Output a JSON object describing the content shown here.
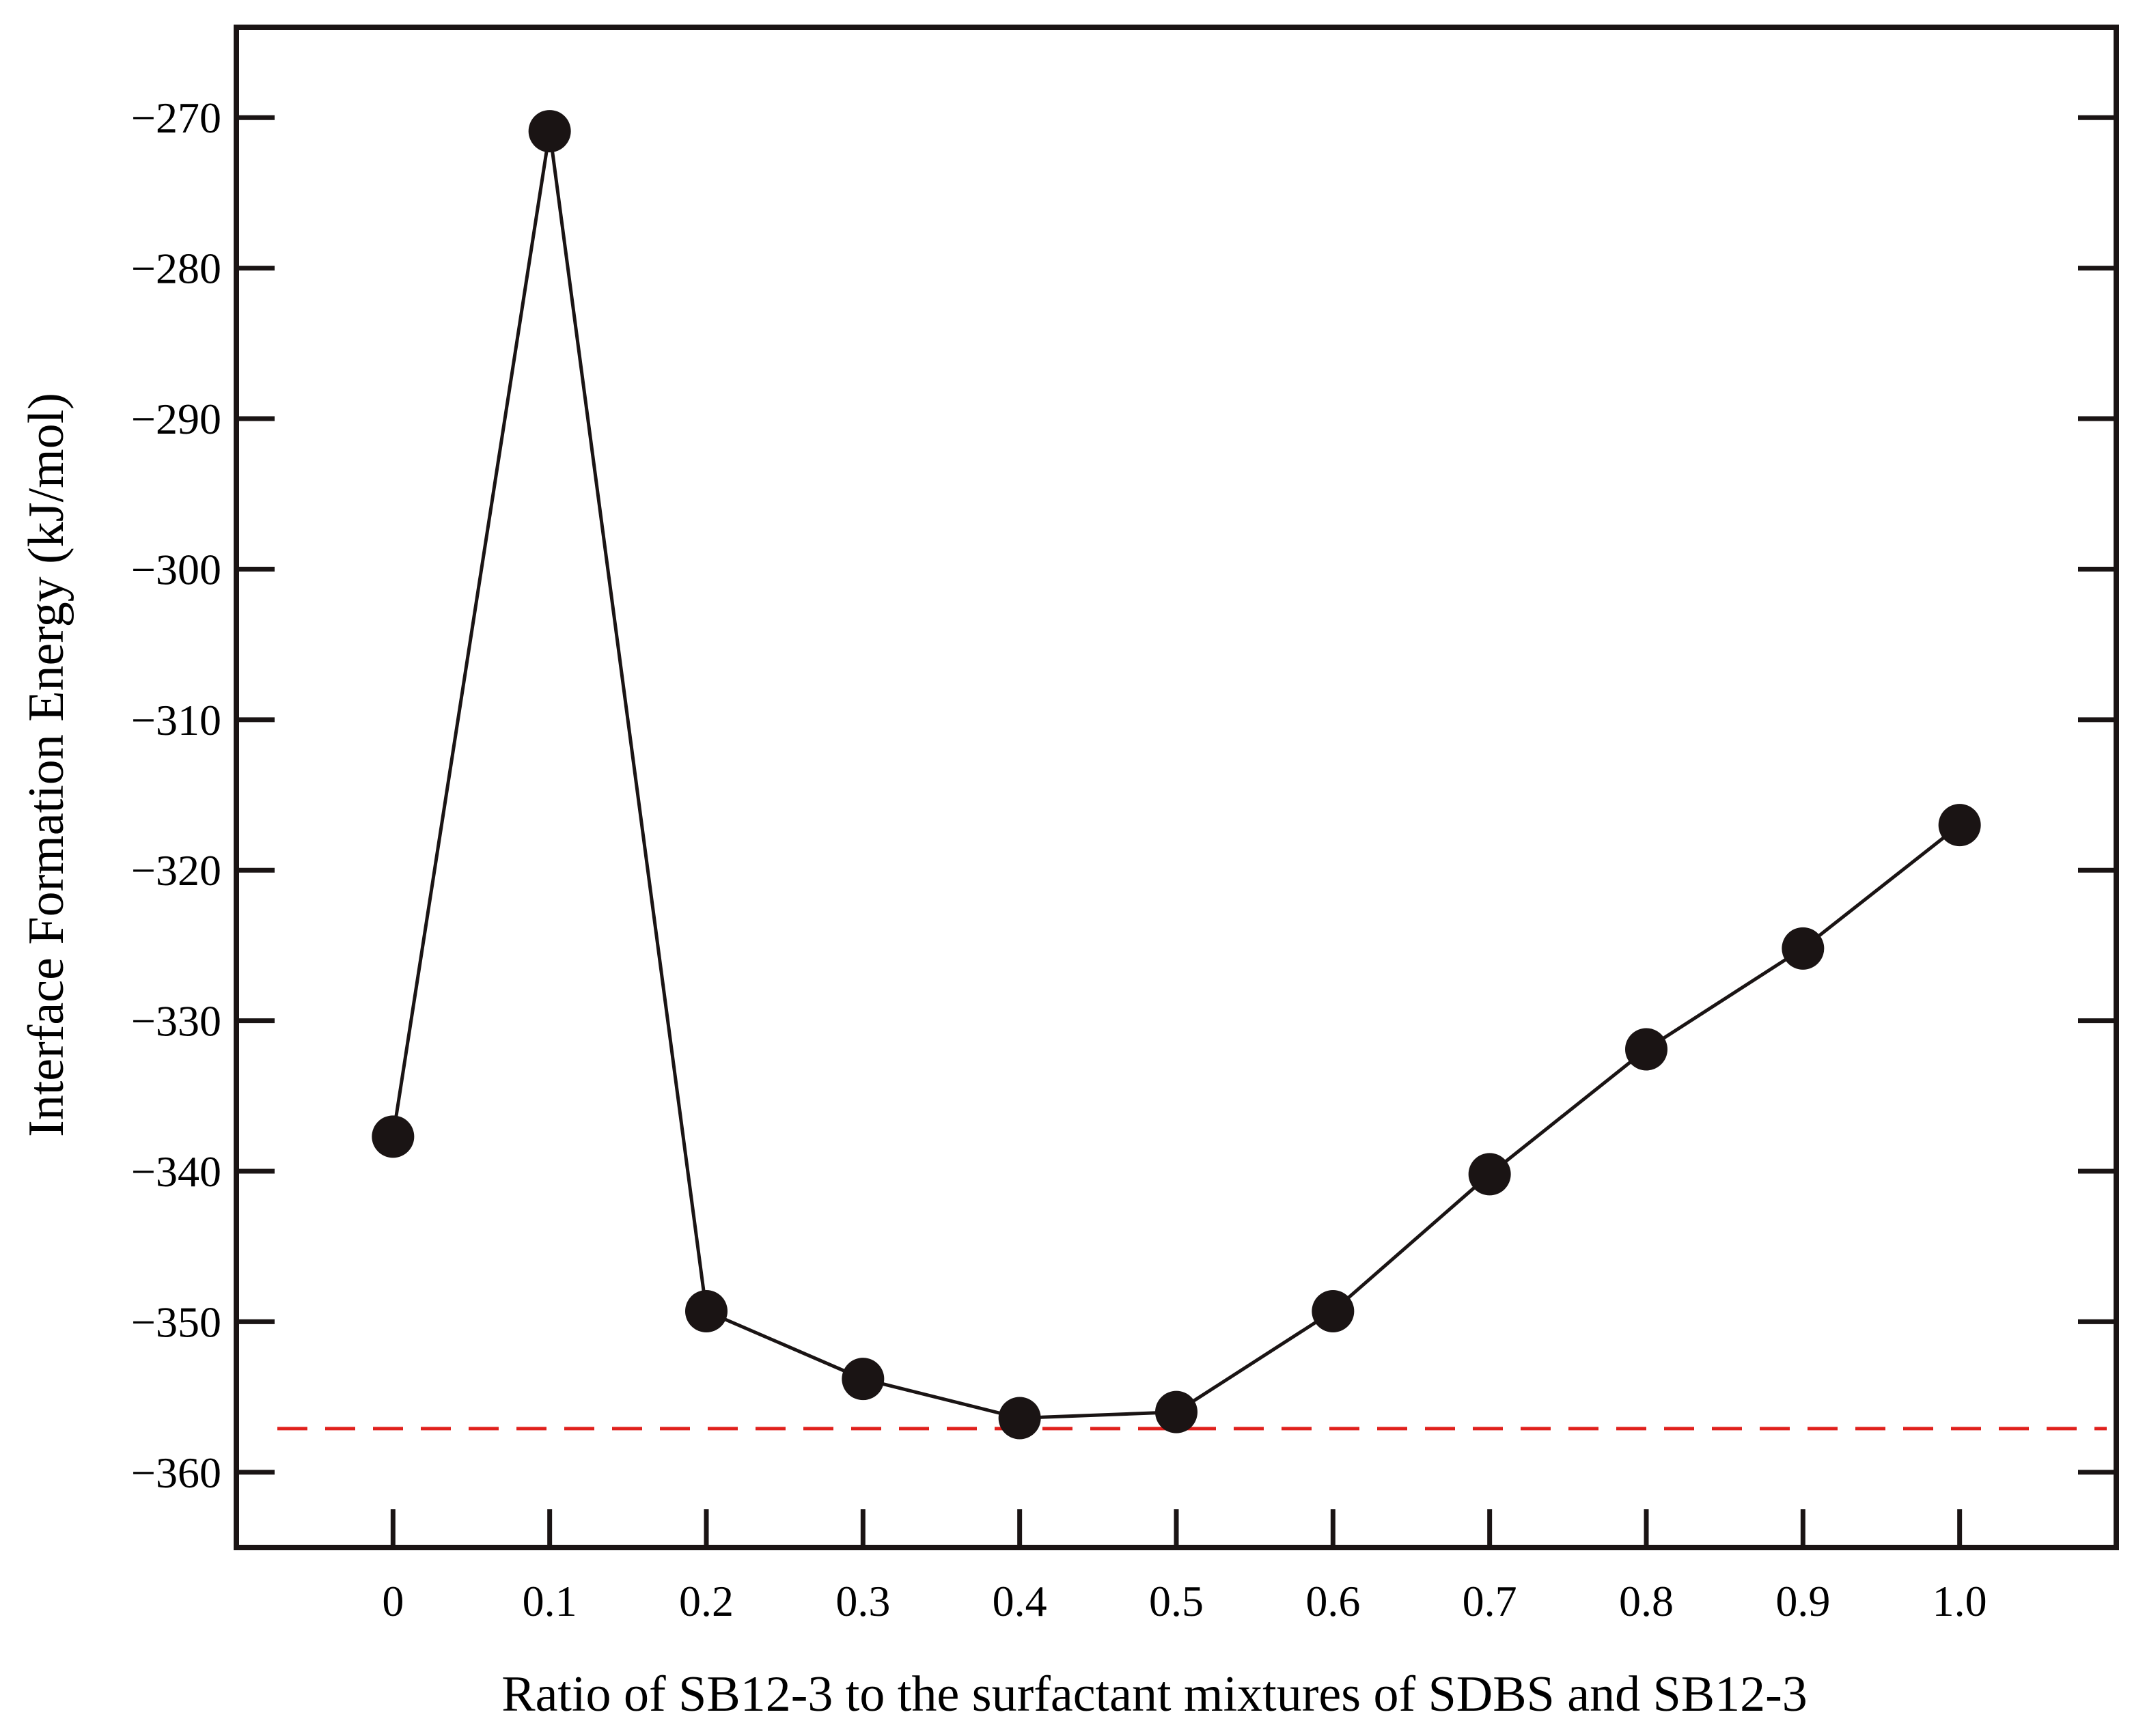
{
  "chart_data": {
    "type": "line",
    "title": "",
    "xlabel": "Ratio of SB12-3 to the surfactant mixtures of SDBS and SB12-3",
    "ylabel": "Interface Formation Energy (kJ/mol)",
    "xlim": [
      -0.1,
      1.1
    ],
    "ylim": [
      -365,
      -264
    ],
    "x_ticks": [
      0,
      0.1,
      0.2,
      0.3,
      0.4,
      0.5,
      0.6,
      0.7,
      0.8,
      0.9,
      1.0
    ],
    "x_tick_labels": [
      "0",
      "0.1",
      "0.2",
      "0.3",
      "0.4",
      "0.5",
      "0.6",
      "0.7",
      "0.8",
      "0.9",
      "1.0"
    ],
    "y_ticks": [
      -270,
      -280,
      -290,
      -300,
      -310,
      -320,
      -330,
      -340,
      -350,
      -360
    ],
    "y_tick_labels": [
      "−270",
      "−280",
      "−290",
      "−300",
      "−310",
      "−320",
      "−330",
      "−340",
      "−350",
      "−360"
    ],
    "grid": false,
    "series": [
      {
        "x": [
          0,
          0.1,
          0.2,
          0.3,
          0.4,
          0.5,
          0.6,
          0.7,
          0.8,
          0.9,
          1.0
        ],
        "values": [
          -337.7,
          -270.9,
          -349.3,
          -353.8,
          -356.4,
          -356.0,
          -349.3,
          -340.2,
          -331.9,
          -325.2,
          -317.0
        ],
        "color": "#1a1414",
        "marker": "circle"
      }
    ],
    "reference_line": {
      "y": -357.1,
      "color": "#e0201c",
      "style": "dashed"
    }
  }
}
